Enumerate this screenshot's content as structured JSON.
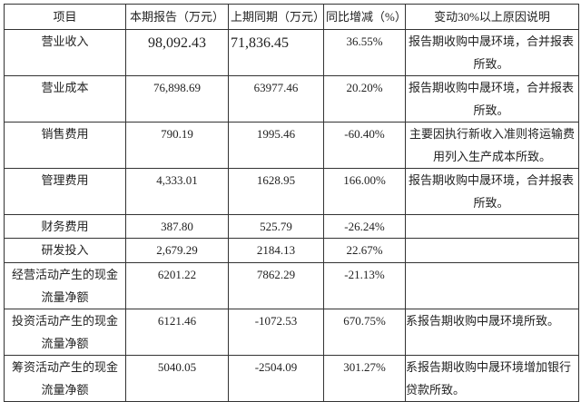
{
  "table": {
    "headers": [
      "项目",
      "本期报告（万元）",
      "上期同期（万元）",
      "同比增减（%）",
      "变动30%以上原因说明"
    ],
    "rows": [
      {
        "item": "营业收入",
        "current": "98,092.43",
        "previous": "71,836.45",
        "change": "36.55%",
        "reason": "报告期收购中晟环境，合并报表所致。"
      },
      {
        "item": "营业成本",
        "current": "76,898.69",
        "previous": "63977.46",
        "change": "20.20%",
        "reason": "报告期收购中晟环境，合并报表所致。"
      },
      {
        "item": "销售费用",
        "current": "790.19",
        "previous": "1995.46",
        "change": "-60.40%",
        "reason": "主要因执行新收入准则将运输费用列入生产成本所致。"
      },
      {
        "item": "管理费用",
        "current": "4,333.01",
        "previous": "1628.95",
        "change": "166.00%",
        "reason": "报告期收购中晟环境，合并报表所致。"
      },
      {
        "item": "财务费用",
        "current": "387.80",
        "previous": "525.79",
        "change": "-26.24%",
        "reason": ""
      },
      {
        "item": "研发投入",
        "current": "2,679.29",
        "previous": "2184.13",
        "change": "22.67%",
        "reason": ""
      },
      {
        "item": "经营活动产生的现金流量净额",
        "current": "6201.22",
        "previous": "7862.29",
        "change": "-21.13%",
        "reason": ""
      },
      {
        "item": "投资活动产生的现金流量净额",
        "current": "6121.46",
        "previous": "-1072.53",
        "change": "670.75%",
        "reason": "系报告期收购中晟环境所致。"
      },
      {
        "item": "筹资活动产生的现金流量净额",
        "current": "5040.05",
        "previous": "-2504.09",
        "change": "301.27%",
        "reason": "系报告期收购中晟环境增加银行贷款所致。"
      }
    ]
  }
}
